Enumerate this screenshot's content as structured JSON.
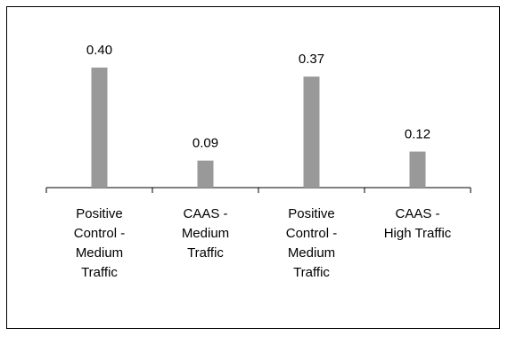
{
  "chart_data": {
    "type": "bar",
    "categories": [
      "Positive\nControl -\nMedium\nTraffic",
      "CAAS -\nMedium\nTraffic",
      "Positive\nControl -\nMedium\nTraffic",
      "CAAS -\nHigh Traffic"
    ],
    "values": [
      0.4,
      0.09,
      0.37,
      0.12
    ],
    "data_labels": [
      "0.40",
      "0.09",
      "0.37",
      "0.12"
    ],
    "title": "",
    "xlabel": "",
    "ylabel": "",
    "ylim": [
      0,
      0.4
    ],
    "grid": false,
    "legend": "none",
    "bar_color": "#999999",
    "axis_color": "#000000"
  }
}
